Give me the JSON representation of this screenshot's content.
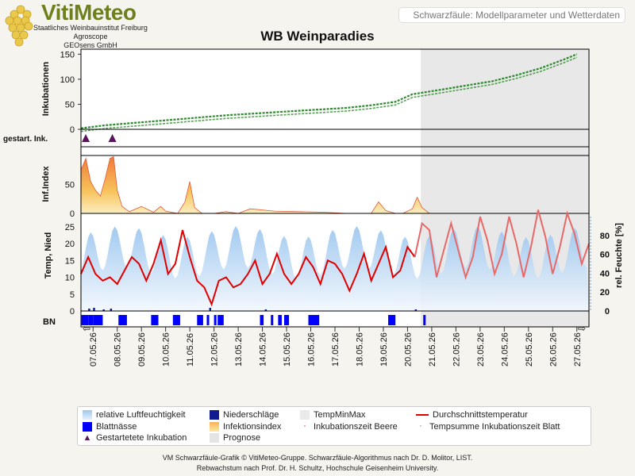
{
  "header": {
    "logo_text": "VitiMeteo",
    "org_lines": [
      "Staatliches Weinbauinstitut Freiburg",
      "Agroscope",
      "GEOsens GmbH"
    ],
    "model_title": "Schwarzfäule: Modellparameter und Wetterdaten"
  },
  "chart_title": "WB Weinparadies",
  "panels": {
    "incubations_label": "Inkubationen",
    "started_label": "gestart. Ink.",
    "infindex_label": "Inf.Index",
    "temp_label": "Temp, Nied",
    "humidity_label": "rel. Feuchte [%]",
    "bn_label": "BN"
  },
  "chart_data": {
    "type": "line",
    "dates": [
      "07.05.26",
      "08.05.26",
      "09.05.26",
      "10.05.26",
      "11.05.26",
      "12.05.26",
      "13.05.26",
      "14.05.26",
      "15.05.26",
      "16.05.26",
      "17.05.26",
      "18.05.26",
      "19.05.26",
      "20.05.26",
      "21.05.26",
      "22.05.26",
      "23.05.26",
      "24.05.26",
      "25.05.26",
      "26.05.26",
      "27.05.26"
    ],
    "forecast_start": "20.05.26",
    "incubations": {
      "ylim": [
        0,
        160
      ],
      "yticks": [
        0,
        50,
        100,
        150
      ],
      "x": [
        0,
        1,
        2,
        3,
        4,
        5,
        6,
        7,
        8,
        9,
        10,
        11,
        12,
        13,
        13.7,
        15,
        16,
        17,
        18,
        19,
        20,
        20.5
      ],
      "y": [
        2,
        8,
        12,
        16,
        20,
        24,
        28,
        31,
        34,
        37,
        40,
        43,
        48,
        55,
        70,
        80,
        88,
        96,
        108,
        122,
        140,
        150
      ]
    },
    "started_incubations_days": [
      0.1,
      1.2
    ],
    "infection_index": {
      "ylim": [
        0,
        100
      ],
      "x": [
        0,
        0.2,
        0.4,
        0.6,
        0.8,
        1.0,
        1.2,
        1.35,
        1.5,
        1.7,
        2,
        2.5,
        3,
        3.3,
        3.5,
        4,
        4.3,
        4.5,
        4.7,
        5,
        5.5,
        6,
        6.5,
        7,
        8,
        9,
        10,
        11,
        12,
        12.3,
        12.6,
        13,
        13.3,
        13.7,
        13.9,
        14.1,
        14.4,
        21
      ],
      "y": [
        75,
        95,
        55,
        40,
        30,
        60,
        95,
        98,
        40,
        12,
        3,
        12,
        2,
        12,
        4,
        0,
        20,
        55,
        10,
        0,
        0,
        3,
        0,
        8,
        4,
        3,
        2,
        0,
        0,
        20,
        5,
        0,
        0,
        8,
        28,
        10,
        0,
        0
      ]
    },
    "temperature": {
      "ylim": [
        0,
        28
      ],
      "yticks": [
        0,
        5,
        10,
        15,
        20,
        25
      ],
      "x": [
        0,
        0.3,
        0.6,
        0.9,
        1.2,
        1.5,
        1.8,
        2.1,
        2.4,
        2.7,
        3.0,
        3.3,
        3.6,
        3.9,
        4.2,
        4.5,
        4.8,
        5.1,
        5.4,
        5.7,
        6.0,
        6.3,
        6.6,
        6.9,
        7.2,
        7.5,
        7.8,
        8.1,
        8.4,
        8.7,
        9.0,
        9.3,
        9.6,
        9.9,
        10.2,
        10.5,
        10.8,
        11.1,
        11.4,
        11.7,
        12.0,
        12.3,
        12.6,
        12.9,
        13.2,
        13.5,
        13.8,
        14.1,
        14.4,
        14.7,
        15.0,
        15.3,
        15.6,
        15.9,
        16.2,
        16.5,
        16.8,
        17.1,
        17.4,
        17.7,
        18.0,
        18.3,
        18.6,
        18.9,
        19.2,
        19.5,
        19.8,
        20.1,
        20.4,
        20.7,
        21.0
      ],
      "y": [
        11,
        16,
        11,
        9,
        10,
        8,
        12,
        16,
        14,
        9,
        14,
        21,
        11,
        14,
        24,
        16,
        9,
        7,
        2,
        9,
        10,
        7,
        8,
        11,
        15,
        8,
        11,
        17,
        11,
        8,
        11,
        16,
        13,
        8,
        15,
        14,
        11,
        6,
        11,
        17,
        9,
        14,
        19,
        10,
        12,
        19,
        16,
        26,
        24,
        10,
        18,
        26,
        18,
        10,
        16,
        28,
        21,
        11,
        17,
        28,
        20,
        10,
        19,
        30,
        22,
        11,
        19,
        29,
        23,
        14,
        20
      ]
    },
    "humidity": {
      "ylim": [
        0,
        100
      ],
      "yticks": [
        0,
        20,
        40,
        60,
        80
      ]
    },
    "leaf_wetness_spans": [
      [
        0.02,
        0.32
      ],
      [
        0.32,
        0.5
      ],
      [
        0.5,
        0.9
      ],
      [
        1.55,
        1.9
      ],
      [
        2.9,
        3.2
      ],
      [
        3.8,
        4.1
      ],
      [
        4.8,
        5.05
      ],
      [
        5.2,
        5.3
      ],
      [
        5.5,
        5.6
      ],
      [
        5.65,
        5.9
      ],
      [
        7.4,
        7.55
      ],
      [
        7.85,
        7.95
      ],
      [
        8.15,
        8.3
      ],
      [
        8.4,
        8.6
      ],
      [
        9.4,
        9.85
      ],
      [
        12.7,
        13.0
      ],
      [
        14.15,
        14.25
      ]
    ],
    "legend": [
      "relative Luftfeuchtigkeit",
      "Niederschläge",
      "TempMinMax",
      "Durchschnittstemperatur",
      "Blattnässe",
      "Infektionsindex",
      "Inkubationszeit Beere",
      "Tempsumme Inkubationszeit Blatt",
      "Gestartetete Inkubation",
      "Prognose"
    ],
    "colors": {
      "incubation": "#2e8b2e",
      "temperature": "#e00000",
      "humidity": "#9ec8f0",
      "rain": "#111a8f",
      "leaf_wetness": "#0000ff",
      "infection": "#f2a44a",
      "marker": "#5a145a",
      "forecast": "#e4e4e4"
    }
  },
  "footer": {
    "line1": "VM Schwarzfäule-Grafik © VitiMeteo-Gruppe. Schwarzfäule-Algorithmus nach Dr. D. Molitor, LIST.",
    "line2": "Rebwachstum nach Prof. Dr. H. Schultz, Hochschule Geisenheim University."
  }
}
